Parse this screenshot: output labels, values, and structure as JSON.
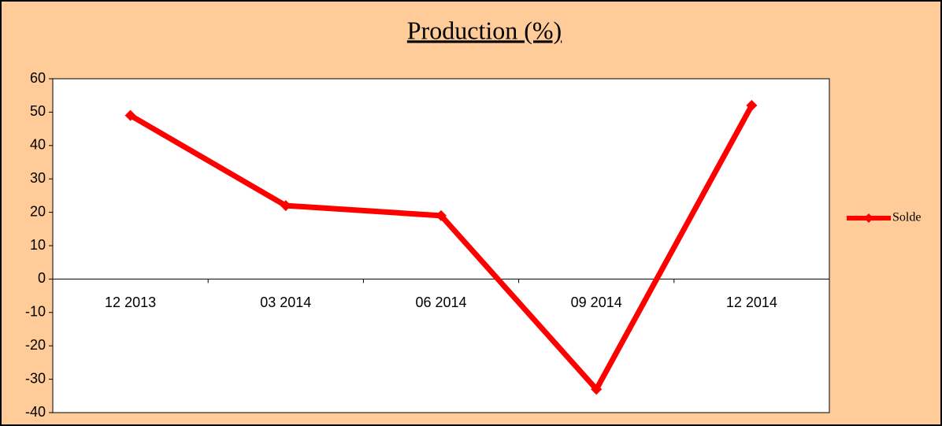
{
  "chart_data": {
    "type": "line",
    "title": "Production (%)",
    "categories": [
      "12 2013",
      "03 2014",
      "06 2014",
      "09 2014",
      "12 2014"
    ],
    "series": [
      {
        "name": "Solde",
        "color": "#ff0000",
        "values": [
          49,
          22,
          19,
          -33,
          52
        ]
      }
    ],
    "ylim": [
      -40,
      60
    ],
    "yticks": [
      -40,
      -30,
      -20,
      -10,
      0,
      10,
      20,
      30,
      40,
      50,
      60
    ],
    "grid": false,
    "legend": "right"
  }
}
